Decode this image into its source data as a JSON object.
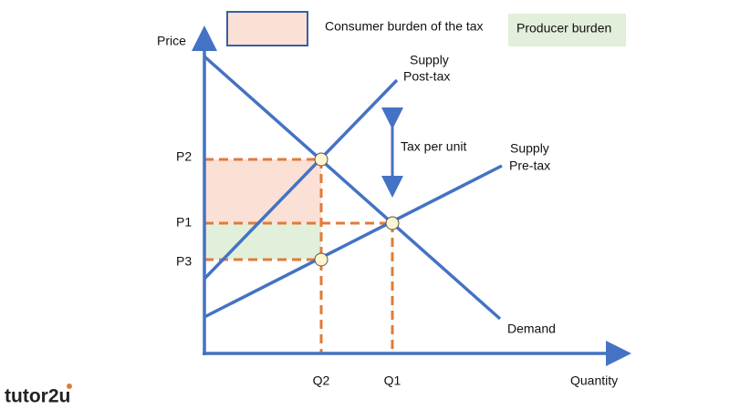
{
  "legend": {
    "consumer": "Consumer burden of the tax",
    "producer": "Producer burden"
  },
  "axes": {
    "y_label": "Price",
    "x_label": "Quantity"
  },
  "price_labels": [
    "P2",
    "P1",
    "P3"
  ],
  "quantity_labels": [
    "Q2",
    "Q1"
  ],
  "curves": {
    "supply_post_tax": [
      "Supply",
      "Post-tax"
    ],
    "supply_pre_tax": [
      "Supply",
      "Pre-tax"
    ],
    "demand": "Demand"
  },
  "tax_label": "Tax per unit",
  "logo": "tutor2u"
}
